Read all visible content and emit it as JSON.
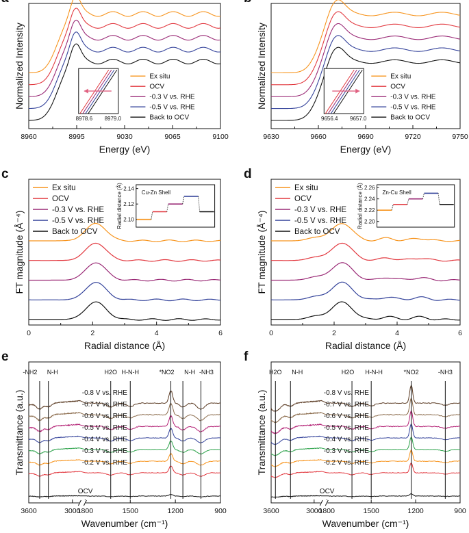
{
  "colors": {
    "ex_situ": "#f7941d",
    "ocv": "#e2383f",
    "m03": "#9a2a76",
    "m05": "#33429a",
    "back": "#111111",
    "m02": "#f7941d",
    "m04": "#2ca24a",
    "m06": "#b21e73",
    "m07": "#8a6a4a",
    "m08": "#5a3a22"
  },
  "chart_data": [
    {
      "id": "a",
      "type": "line",
      "letter": "a",
      "xlabel": "Energy (eV)",
      "ylabel": "Normalized Intensity",
      "xlim": [
        8960,
        9100
      ],
      "xticks": [
        "8960",
        "8995",
        "9030",
        "9065",
        "9100"
      ],
      "edge": 8981,
      "rise": 9.5,
      "peak_x": 8994,
      "peak_width": 3.5,
      "peak_amp": 0.32,
      "osc_period": 22,
      "osc_amp": 0.04,
      "series": [
        {
          "name": "Ex situ",
          "color_key": "ex_situ",
          "offset": 4.0
        },
        {
          "name": "OCV",
          "color_key": "ocv",
          "offset": 3.0
        },
        {
          "name": "-0.3 V  vs. RHE",
          "color_key": "m03",
          "offset": 2.0
        },
        {
          "name": "-0.5 V  vs. RHE",
          "color_key": "m05",
          "offset": 1.0
        },
        {
          "name": "Back to OCV",
          "color_key": "back",
          "offset": 0.0
        }
      ],
      "inset": {
        "ticks": [
          "8978.6",
          "8979.0"
        ],
        "arrow": "left"
      }
    },
    {
      "id": "b",
      "type": "line",
      "letter": "b",
      "xlabel": "Energy (eV)",
      "ylabel": "Normalized Intensity",
      "xlim": [
        9630,
        9750
      ],
      "xticks": [
        "9630",
        "9660",
        "9690",
        "9720",
        "9750"
      ],
      "edge": 9661,
      "rise": 9.0,
      "peak_x": 9671,
      "peak_width": 5,
      "peak_amp": 0.28,
      "osc_period": 30,
      "osc_amp": 0.03,
      "series": [
        {
          "name": "Ex situ",
          "color_key": "ex_situ",
          "offset": 4.0
        },
        {
          "name": "OCV",
          "color_key": "ocv",
          "offset": 3.0
        },
        {
          "name": "-0.3 V  vs. RHE",
          "color_key": "m03",
          "offset": 2.0
        },
        {
          "name": "-0.5 V  vs. RHE",
          "color_key": "m05",
          "offset": 1.0
        },
        {
          "name": "Back to OCV",
          "color_key": "back",
          "offset": 0.0
        }
      ],
      "inset": {
        "ticks": [
          "9656.4",
          "9657.0"
        ],
        "arrow": "right"
      }
    },
    {
      "id": "c",
      "type": "line",
      "letter": "c",
      "xlabel": "Radial distance (Å)",
      "ylabel": "FT magnitude (Å⁻⁴)",
      "xlim": [
        0,
        6
      ],
      "xticks": [
        "0",
        "2",
        "4",
        "6"
      ],
      "main_peak": 2.1,
      "main_amp": 1.0,
      "main_width": 0.32,
      "secondary": [],
      "series": [
        {
          "name": "Ex situ",
          "color_key": "ex_situ",
          "offset": 4.0
        },
        {
          "name": "OCV",
          "color_key": "ocv",
          "offset": 3.0
        },
        {
          "name": "-0.3 V  vs. RHE",
          "color_key": "m03",
          "offset": 2.0
        },
        {
          "name": "-0.5 V  vs. RHE",
          "color_key": "m05",
          "offset": 1.0
        },
        {
          "name": "Back to OCV",
          "color_key": "back",
          "offset": 0.0
        }
      ],
      "inset": {
        "title": "Cu-Zn Shell",
        "ylabel": "Radial distance (Å)",
        "ylim": [
          2.09,
          2.145
        ],
        "yticks": [
          2.1,
          2.12,
          2.14
        ],
        "levels": [
          2.1,
          2.11,
          2.12,
          2.13,
          2.11
        ]
      }
    },
    {
      "id": "d",
      "type": "line",
      "letter": "d",
      "xlabel": "Radial distance (Å)",
      "ylabel": "FT magnitude (Å⁻⁴)",
      "xlim": [
        0,
        6
      ],
      "xticks": [
        "0",
        "2",
        "4",
        "6"
      ],
      "main_peak": 2.25,
      "main_amp": 1.0,
      "main_width": 0.33,
      "secondary": [
        [
          1.4,
          0.18,
          0.25
        ],
        [
          3.7,
          0.16,
          0.22
        ],
        [
          4.7,
          0.14,
          0.25
        ]
      ],
      "series": [
        {
          "name": "Ex situ",
          "color_key": "ex_situ",
          "offset": 4.0
        },
        {
          "name": "OCV",
          "color_key": "ocv",
          "offset": 3.0
        },
        {
          "name": "-0.3 V  vs. RHE",
          "color_key": "m03",
          "offset": 2.0
        },
        {
          "name": "-0.5 V  vs. RHE",
          "color_key": "m05",
          "offset": 1.0
        },
        {
          "name": "Back to OCV",
          "color_key": "back",
          "offset": 0.0
        }
      ],
      "inset": {
        "title": "Zn-Cu Shell",
        "ylabel": "Radial distance (Å)",
        "ylim": [
          2.19,
          2.265
        ],
        "yticks": [
          2.2,
          2.22,
          2.24,
          2.26
        ],
        "levels": [
          2.22,
          2.23,
          2.24,
          2.25,
          2.23
        ]
      }
    },
    {
      "id": "e",
      "type": "line",
      "letter": "e",
      "xlabel": "Wavenumber (cm⁻¹)",
      "ylabel": "Transmittance (a.u.)",
      "xticks": [
        "3600",
        "3000",
        "1800",
        "1500",
        "1200",
        "900"
      ],
      "series": [
        {
          "name": "-0.8 V vs. RHE",
          "color_key": "m08",
          "offset": 8
        },
        {
          "name": "-0.7 V vs. RHE",
          "color_key": "m07",
          "offset": 7
        },
        {
          "name": "-0.6 V vs. RHE",
          "color_key": "m06",
          "offset": 6
        },
        {
          "name": "-0.5 V vs. RHE",
          "color_key": "m05",
          "offset": 5
        },
        {
          "name": "-0.4 V vs. RHE",
          "color_key": "m04",
          "offset": 4
        },
        {
          "name": "-0.3 V vs. RHE",
          "color_key": "m02",
          "offset": 3
        },
        {
          "name": "-0.2 V vs. RHE",
          "color_key": "ocv",
          "offset": 2
        },
        {
          "name": "OCV",
          "color_key": "back",
          "offset": 0
        }
      ],
      "annotations": [
        "-NH2",
        "N-H",
        "H2O",
        "H-N-H",
        "*NO2",
        "N-H",
        "-NH3"
      ]
    },
    {
      "id": "f",
      "type": "line",
      "letter": "f",
      "xlabel": "Wavenumber (cm⁻¹)",
      "ylabel": "Transmittance (a.u.)",
      "xticks": [
        "3600",
        "3000",
        "1800",
        "1500",
        "1200",
        "900"
      ],
      "series": [
        {
          "name": "-0.8 V vs. RHE",
          "color_key": "m08",
          "offset": 8
        },
        {
          "name": "-0.7 V vs. RHE",
          "color_key": "m07",
          "offset": 7
        },
        {
          "name": "-0.6 V vs. RHE",
          "color_key": "m06",
          "offset": 6
        },
        {
          "name": "-0.5 V vs. RHE",
          "color_key": "m05",
          "offset": 5
        },
        {
          "name": "-0.4 V vs. RHE",
          "color_key": "m04",
          "offset": 4
        },
        {
          "name": "-0.3 V vs. RHE",
          "color_key": "m02",
          "offset": 3
        },
        {
          "name": "-0.2 V vs. RHE",
          "color_key": "ocv",
          "offset": 2
        },
        {
          "name": "OCV",
          "color_key": "back",
          "offset": 0
        }
      ],
      "annotations": [
        "H2O",
        "N-H",
        "H2O",
        "H-N-H",
        "*NO2",
        "-NH3"
      ]
    }
  ]
}
